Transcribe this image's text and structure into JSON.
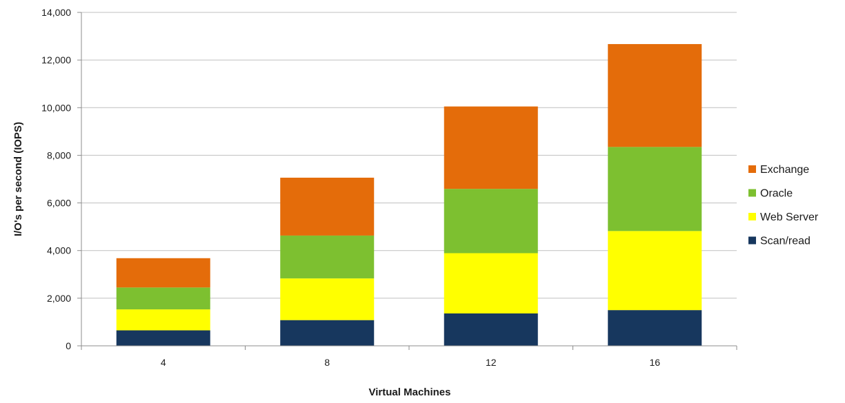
{
  "chart_data": {
    "type": "bar",
    "stacked": true,
    "categories": [
      "4",
      "8",
      "12",
      "16"
    ],
    "series": [
      {
        "name": "Scan/read",
        "color": "#17375e",
        "values": [
          650,
          1080,
          1360,
          1500
        ]
      },
      {
        "name": "Web Server",
        "color": "#ffff00",
        "values": [
          880,
          1750,
          2530,
          3320
        ]
      },
      {
        "name": "Oracle",
        "color": "#7dc030",
        "values": [
          920,
          1800,
          2700,
          3530
        ]
      },
      {
        "name": "Exchange",
        "color": "#e46c0a",
        "values": [
          1230,
          2430,
          3460,
          4320
        ]
      }
    ],
    "xlabel": "Virtual Machines",
    "ylabel": "I/O's per second (IOPS)",
    "ylim": [
      0,
      14000
    ],
    "yticks": [
      0,
      2000,
      4000,
      6000,
      8000,
      10000,
      12000,
      14000
    ],
    "ytick_labels": [
      "0",
      "2,000",
      "4,000",
      "6,000",
      "8,000",
      "10,000",
      "12,000",
      "14,000"
    ],
    "grid": true,
    "legend_position": "right",
    "legend_order": [
      "Exchange",
      "Oracle",
      "Web Server",
      "Scan/read"
    ]
  }
}
